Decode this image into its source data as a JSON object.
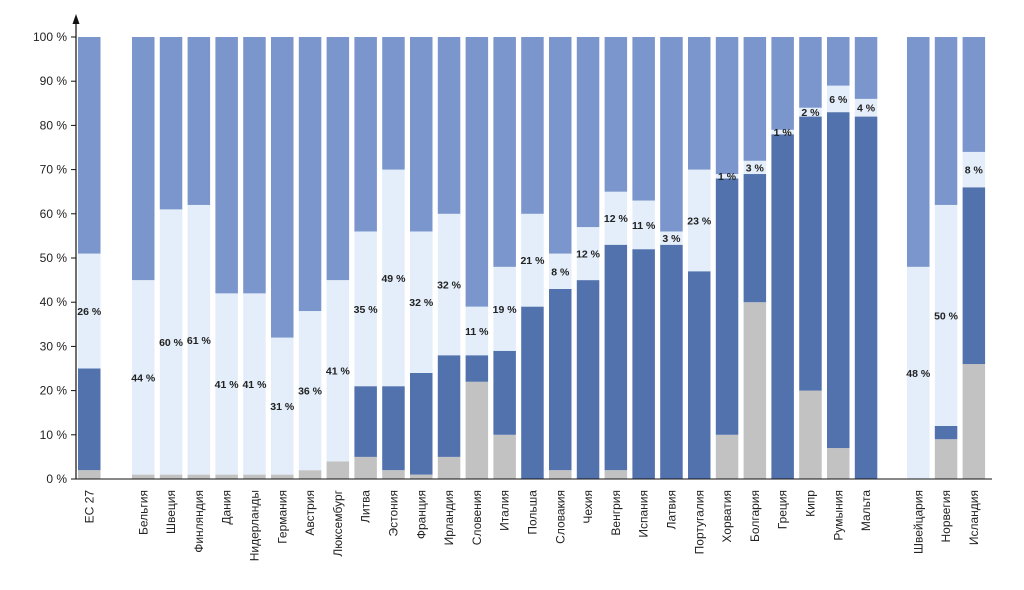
{
  "colors": {
    "top": "#7b96cc",
    "light": "#e3eefa",
    "dark": "#5272ae",
    "gray": "#c2c2c2",
    "axis": "#111111"
  },
  "chart_data": {
    "type": "bar",
    "stacked": true,
    "title": "",
    "xlabel": "",
    "ylabel": "",
    "ylim": [
      0,
      100
    ],
    "y_ticks": [
      "0 %",
      "10 %",
      "20 %",
      "30 %",
      "40 %",
      "50 %",
      "60 %",
      "70 %",
      "80 %",
      "90 %",
      "100 %"
    ],
    "grid": false,
    "legend": "none",
    "groups": [
      {
        "categories": [
          "ЕС 27"
        ]
      },
      {
        "categories": [
          "Бельгия",
          "Швеция",
          "Финляндия",
          "Дания",
          "Нидерланды",
          "Германия",
          "Австрия",
          "Люксембург",
          "Литва",
          "Эстония",
          "Франция",
          "Ирландия",
          "Словения",
          "Италия",
          "Польша",
          "Словакия",
          "Чехия",
          "Венгрия",
          "Испания",
          "Латвия",
          "Португалия",
          "Хорватия",
          "Болгария",
          "Греция",
          "Кипр",
          "Румыния",
          "Мальта"
        ]
      },
      {
        "categories": [
          "Швейцария",
          "Норвегия",
          "Исландия"
        ]
      }
    ],
    "categories": [
      "ЕС 27",
      "Бельгия",
      "Швеция",
      "Финляндия",
      "Дания",
      "Нидерланды",
      "Германия",
      "Австрия",
      "Люксембург",
      "Литва",
      "Эстония",
      "Франция",
      "Ирландия",
      "Словения",
      "Италия",
      "Польша",
      "Словакия",
      "Чехия",
      "Венгрия",
      "Испания",
      "Латвия",
      "Португалия",
      "Хорватия",
      "Болгария",
      "Греция",
      "Кипр",
      "Румыния",
      "Мальта",
      "Швейцария",
      "Норвегия",
      "Исландия"
    ],
    "series": [
      {
        "values": [
          2,
          1,
          1,
          1,
          1,
          1,
          1,
          2,
          4,
          5,
          2,
          1,
          5,
          22,
          10,
          0,
          2,
          0,
          2,
          0,
          0,
          0,
          10,
          40,
          0,
          20,
          7,
          0,
          0,
          9,
          26
        ]
      },
      {
        "values": [
          23,
          0,
          0,
          0,
          0,
          0,
          0,
          0,
          0,
          16,
          19,
          23,
          23,
          6,
          19,
          39,
          41,
          45,
          51,
          52,
          53,
          47,
          58,
          29,
          78,
          62,
          76,
          82,
          0,
          3,
          40
        ]
      },
      {
        "values": [
          26,
          44,
          60,
          61,
          41,
          41,
          31,
          36,
          41,
          35,
          49,
          32,
          32,
          11,
          19,
          21,
          8,
          12,
          12,
          11,
          3,
          23,
          1,
          3,
          1,
          2,
          6,
          4,
          48,
          50,
          8
        ]
      },
      {
        "values": [
          49,
          55,
          39,
          38,
          58,
          58,
          68,
          62,
          55,
          44,
          30,
          44,
          40,
          61,
          52,
          40,
          49,
          43,
          35,
          37,
          44,
          30,
          31,
          28,
          21,
          16,
          11,
          14,
          52,
          38,
          26
        ]
      }
    ],
    "data_labels": [
      "26 %",
      "44 %",
      "60 %",
      "61 %",
      "41 %",
      "41 %",
      "31 %",
      "36 %",
      "41 %",
      "35 %",
      "49 %",
      "32 %",
      "32 %",
      "11 %",
      "19 %",
      "21 %",
      "8 %",
      "12 %",
      "12 %",
      "11 %",
      "3 %",
      "23 %",
      "1 %",
      "3 %",
      "1 %",
      "2 %",
      "6 %",
      "4 %",
      "48 %",
      "50 %",
      "8 %"
    ]
  }
}
